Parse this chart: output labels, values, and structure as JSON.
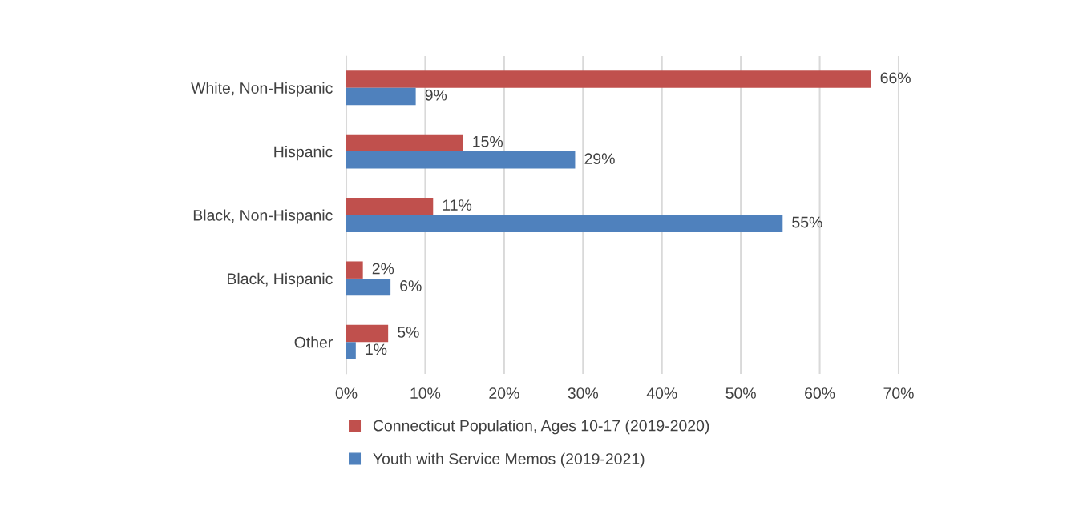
{
  "chart_data": {
    "type": "bar",
    "orientation": "horizontal",
    "categories": [
      "White, Non-Hispanic",
      "Hispanic",
      "Black, Non-Hispanic",
      "Black, Hispanic",
      "Other"
    ],
    "series": [
      {
        "name": "Connecticut Population, Ages 10-17 (2019-2020)",
        "color": "#c0504d",
        "values": [
          66.5,
          14.8,
          11,
          2.1,
          5.3
        ],
        "value_labels": [
          "66%",
          "15%",
          "11%",
          "2%",
          "5%"
        ]
      },
      {
        "name": "Youth with Service Memos (2019-2021)",
        "color": "#4f81bd",
        "values": [
          8.8,
          29,
          55.3,
          5.6,
          1.2
        ],
        "value_labels": [
          "9%",
          "29%",
          "55%",
          "6%",
          "1%"
        ]
      }
    ],
    "xlim": [
      0,
      70
    ],
    "xticks": [
      {
        "value": 0,
        "label": "0%"
      },
      {
        "value": 10,
        "label": "10%"
      },
      {
        "value": 20,
        "label": "20%"
      },
      {
        "value": 30,
        "label": "30%"
      },
      {
        "value": 40,
        "label": "40%"
      },
      {
        "value": 50,
        "label": "50%"
      },
      {
        "value": 60,
        "label": "60%"
      },
      {
        "value": 70,
        "label": "70%"
      }
    ],
    "grid": "x",
    "legend": "bottom"
  }
}
